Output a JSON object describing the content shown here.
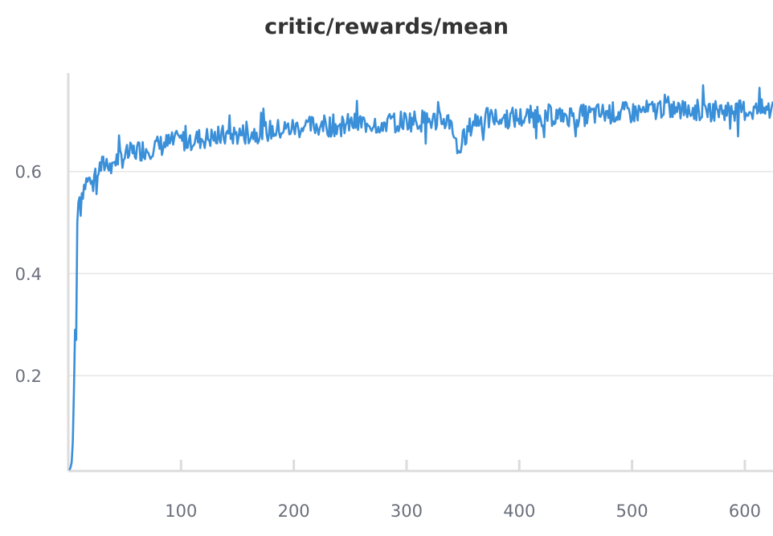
{
  "chart_data": {
    "type": "line",
    "title": "critic/rewards/mean",
    "xlabel": "",
    "ylabel": "",
    "xlim": [
      0,
      625
    ],
    "ylim": [
      0.013,
      0.793
    ],
    "x_ticks": [
      100,
      200,
      300,
      400,
      500,
      600
    ],
    "y_ticks": [
      0.2,
      0.4,
      0.6
    ],
    "grid": {
      "horizontal": true,
      "vertical": false
    },
    "line_color": "#3a8fd9",
    "series": [
      {
        "x": [
          1,
          2,
          3,
          4,
          5,
          6,
          7,
          8,
          9,
          10,
          11,
          12,
          14,
          16,
          18,
          20,
          25,
          30,
          35,
          40,
          50,
          60,
          70,
          80,
          90,
          100,
          120,
          140,
          160,
          180,
          200,
          220,
          240,
          260,
          280,
          300,
          320,
          340,
          345,
          360,
          380,
          400,
          420,
          440,
          460,
          480,
          500,
          520,
          530,
          540,
          560,
          580,
          600,
          620,
          625
        ],
        "values": [
          0.015,
          0.02,
          0.03,
          0.07,
          0.17,
          0.29,
          0.27,
          0.5,
          0.54,
          0.55,
          0.53,
          0.56,
          0.57,
          0.58,
          0.58,
          0.59,
          0.6,
          0.61,
          0.62,
          0.62,
          0.63,
          0.64,
          0.645,
          0.65,
          0.655,
          0.66,
          0.665,
          0.67,
          0.675,
          0.68,
          0.685,
          0.69,
          0.69,
          0.695,
          0.695,
          0.7,
          0.7,
          0.7,
          0.64,
          0.7,
          0.705,
          0.705,
          0.71,
          0.71,
          0.71,
          0.715,
          0.715,
          0.72,
          0.73,
          0.72,
          0.72,
          0.72,
          0.72,
          0.72,
          0.72
        ]
      }
    ]
  }
}
